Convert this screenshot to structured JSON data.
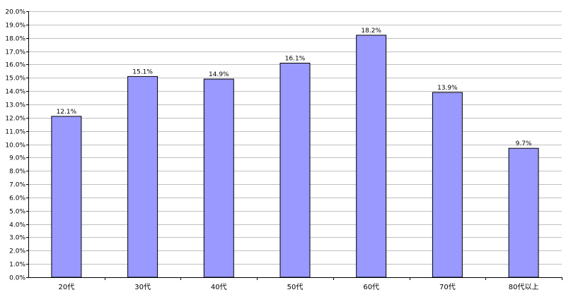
{
  "chart_data": {
    "type": "bar",
    "categories": [
      "20代",
      "30代",
      "40代",
      "50代",
      "60代",
      "70代",
      "80代以上"
    ],
    "values": [
      12.1,
      15.1,
      14.9,
      16.1,
      18.2,
      13.9,
      9.7
    ],
    "data_labels": [
      "12.1%",
      "15.1%",
      "14.9%",
      "16.1%",
      "18.2%",
      "13.9%",
      "9.7%"
    ],
    "ylim": [
      0,
      20
    ],
    "y_step": 1,
    "y_tick_labels": [
      "0.0%",
      "1.0%",
      "2.0%",
      "3.0%",
      "4.0%",
      "5.0%",
      "6.0%",
      "7.0%",
      "8.0%",
      "9.0%",
      "10.0%",
      "11.0%",
      "12.0%",
      "13.0%",
      "14.0%",
      "15.0%",
      "16.0%",
      "17.0%",
      "18.0%",
      "19.0%",
      "20.0%"
    ],
    "grid": true,
    "legend": "none",
    "bar_color": "#9999ff",
    "bar_edge_color": "#000000",
    "grid_color": "#c0c0c0"
  }
}
